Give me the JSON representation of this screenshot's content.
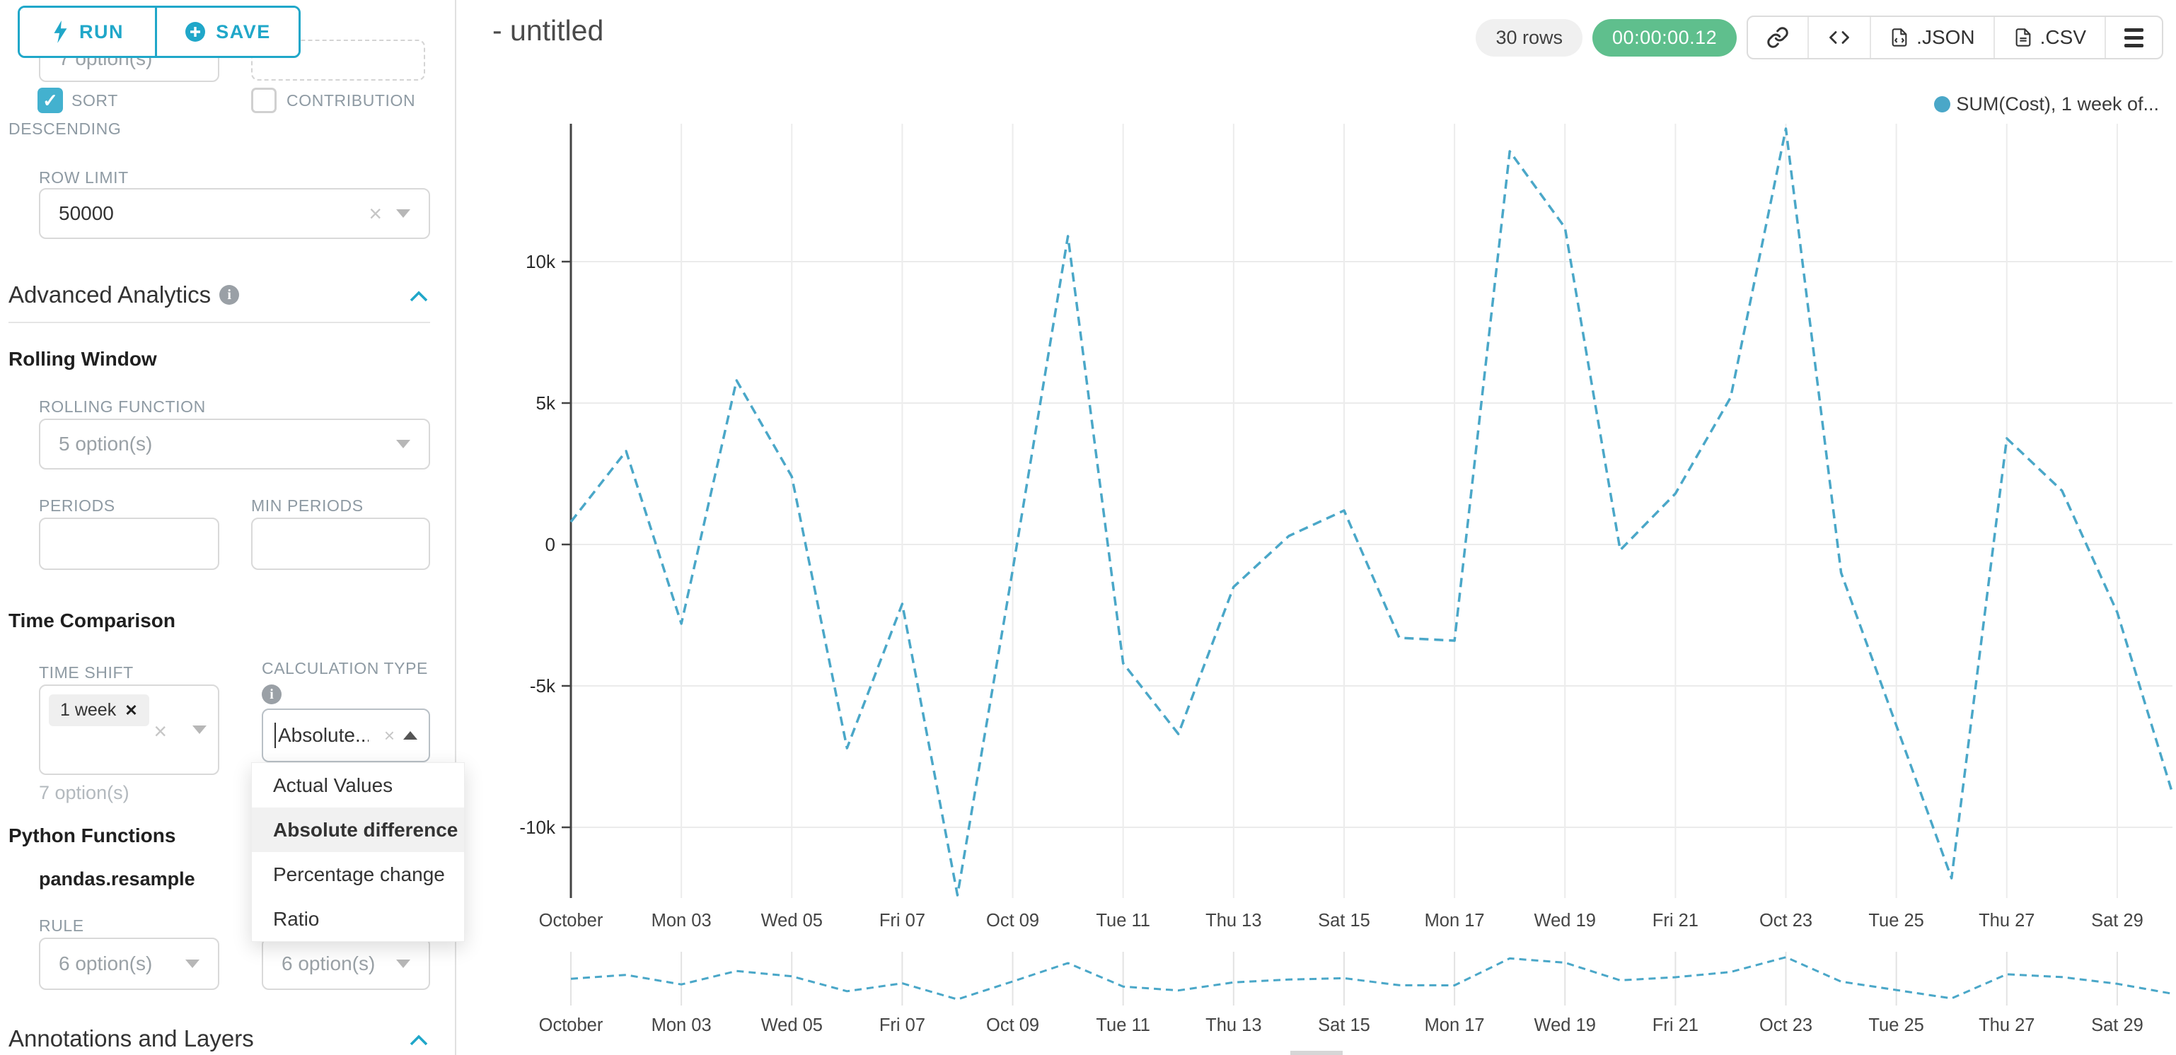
{
  "sidebar": {
    "run_label": "RUN",
    "save_label": "SAVE",
    "top_select_value": "7 option(s)",
    "sort_descending_label": "SORT DESCENDING",
    "contribution_label": "CONTRIBUTION",
    "row_limit_label": "ROW LIMIT",
    "row_limit_value": "50000",
    "advanced_analytics_title": "Advanced Analytics",
    "rolling_window_title": "Rolling Window",
    "rolling_function_label": "ROLLING FUNCTION",
    "rolling_function_placeholder": "5 option(s)",
    "periods_label": "PERIODS",
    "min_periods_label": "MIN PERIODS",
    "time_comparison_title": "Time Comparison",
    "time_shift_label": "TIME SHIFT",
    "time_shift_tag": "1 week",
    "time_shift_hint": "7 option(s)",
    "calculation_type_label": "CALCULATION TYPE",
    "calculation_type_value": "Absolute...",
    "dropdown_options": [
      "Actual Values",
      "Absolute difference",
      "Percentage change",
      "Ratio"
    ],
    "dropdown_selected": "Absolute difference",
    "python_functions_title": "Python Functions",
    "pandas_resample_label": "pandas.resample",
    "rule_label": "RULE",
    "rule_placeholder": "6 option(s)",
    "method_placeholder": "6 option(s)",
    "annotations_title": "Annotations and Layers"
  },
  "header": {
    "title": "- untitled",
    "rows_badge": "30 rows",
    "timer_badge": "00:00:00.12",
    "json_label": ".JSON",
    "csv_label": ".CSV"
  },
  "icons": [
    "lightning-icon",
    "plus-circle-icon",
    "info-icon",
    "chevron-up-icon",
    "caret-down-icon",
    "caret-up-icon",
    "clear-x-icon",
    "link-icon",
    "code-icon",
    "file-icon",
    "menu-icon",
    "checkbox-check-icon"
  ],
  "colors": {
    "accent": "#20a7c9",
    "checkbox": "#43b1cf",
    "success_badge": "#5fbf8d",
    "series_line": "#4aa7c8",
    "gridline": "#ebebeb",
    "axis": "#444444"
  },
  "chart_data": {
    "type": "line",
    "title": "",
    "legend_position": "top-right",
    "grid": true,
    "line_style": "dashed",
    "color": "#4aa7c8",
    "x": [
      "Oct 01",
      "Oct 02",
      "Oct 03",
      "Oct 04",
      "Oct 05",
      "Oct 06",
      "Oct 07",
      "Oct 08",
      "Oct 09",
      "Oct 10",
      "Oct 11",
      "Oct 12",
      "Oct 13",
      "Oct 14",
      "Oct 15",
      "Oct 16",
      "Oct 17",
      "Oct 18",
      "Oct 19",
      "Oct 20",
      "Oct 21",
      "Oct 22",
      "Oct 23",
      "Oct 24",
      "Oct 25",
      "Oct 26",
      "Oct 27",
      "Oct 28",
      "Oct 29",
      "Oct 30"
    ],
    "series": [
      {
        "name": "SUM(Cost), 1 week of...",
        "values": [
          800,
          3300,
          -2800,
          5800,
          2400,
          -7200,
          -2100,
          -12400,
          -900,
          10900,
          -4200,
          -6700,
          -1500,
          300,
          1200,
          -3300,
          -3400,
          13900,
          11200,
          -200,
          1800,
          5200,
          14700,
          -1000,
          -6400,
          -11800,
          3750,
          1900,
          -2400,
          -8800
        ]
      }
    ],
    "xlabel": "",
    "ylabel": "",
    "x_tick_labels": [
      "October",
      "Mon 03",
      "Wed 05",
      "Fri 07",
      "Oct 09",
      "Tue 11",
      "Thu 13",
      "Sat 15",
      "Mon 17",
      "Wed 19",
      "Fri 21",
      "Oct 23",
      "Tue 25",
      "Thu 27",
      "Sat 29"
    ],
    "y_ticks": [
      10000,
      5000,
      0,
      -5000,
      -10000
    ],
    "y_tick_labels": [
      "10k",
      "5k",
      "0",
      "-5k",
      "-10k"
    ],
    "ylim": [
      -12500,
      14875
    ]
  }
}
